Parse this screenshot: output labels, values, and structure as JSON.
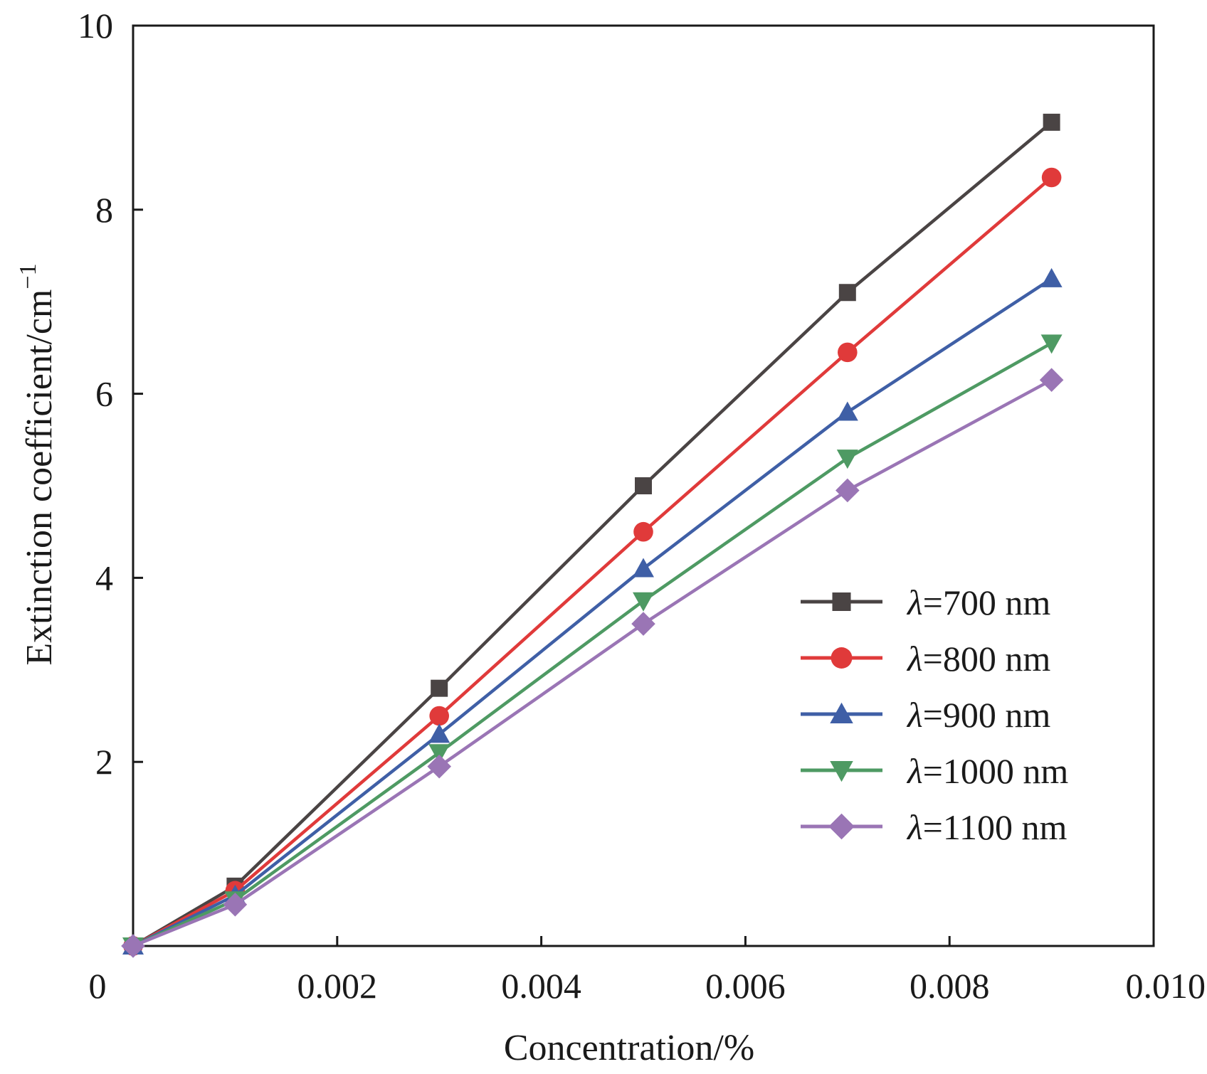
{
  "chart_data": {
    "type": "line",
    "title": "",
    "xlabel": "Concentration/%",
    "ylabel": {
      "base": "Extinction coefficient/cm",
      "superscript": "−1"
    },
    "xlim": [
      0,
      0.01
    ],
    "ylim": [
      0,
      10
    ],
    "x_ticks": [
      {
        "value": 0,
        "label": "0"
      },
      {
        "value": 0.002,
        "label": "0.002"
      },
      {
        "value": 0.004,
        "label": "0.004"
      },
      {
        "value": 0.006,
        "label": "0.006"
      },
      {
        "value": 0.008,
        "label": "0.008"
      },
      {
        "value": 0.01,
        "label": "0.010"
      }
    ],
    "y_ticks": [
      {
        "value": 2,
        "label": "2"
      },
      {
        "value": 4,
        "label": "4"
      },
      {
        "value": 6,
        "label": "6"
      },
      {
        "value": 8,
        "label": "8"
      },
      {
        "value": 10,
        "label": "10"
      }
    ],
    "grid": false,
    "legend_position": "lower-right",
    "x": [
      0,
      0.001,
      0.003,
      0.005,
      0.007,
      0.009
    ],
    "series": [
      {
        "name": "700 nm",
        "symbol": "λ",
        "eq": "=",
        "color": "#4a4444",
        "marker": "square",
        "values": [
          0,
          0.65,
          2.8,
          5.0,
          7.1,
          8.95
        ]
      },
      {
        "name": "800 nm",
        "symbol": "λ",
        "eq": "=",
        "color": "#e03a3a",
        "marker": "circle",
        "values": [
          0,
          0.6,
          2.5,
          4.5,
          6.45,
          8.35
        ]
      },
      {
        "name": "900 nm",
        "symbol": "λ",
        "eq": "=",
        "color": "#3f5fa6",
        "marker": "triangle-up",
        "values": [
          0,
          0.55,
          2.3,
          4.1,
          5.8,
          7.25
        ]
      },
      {
        "name": "1000 nm",
        "symbol": "λ",
        "eq": "=",
        "color": "#4e9a63",
        "marker": "triangle-down",
        "values": [
          0,
          0.5,
          2.1,
          3.75,
          5.3,
          6.55
        ]
      },
      {
        "name": "1100 nm",
        "symbol": "λ",
        "eq": "=",
        "color": "#9a75b5",
        "marker": "diamond",
        "values": [
          0,
          0.45,
          1.95,
          3.5,
          4.95,
          6.15
        ]
      }
    ]
  }
}
